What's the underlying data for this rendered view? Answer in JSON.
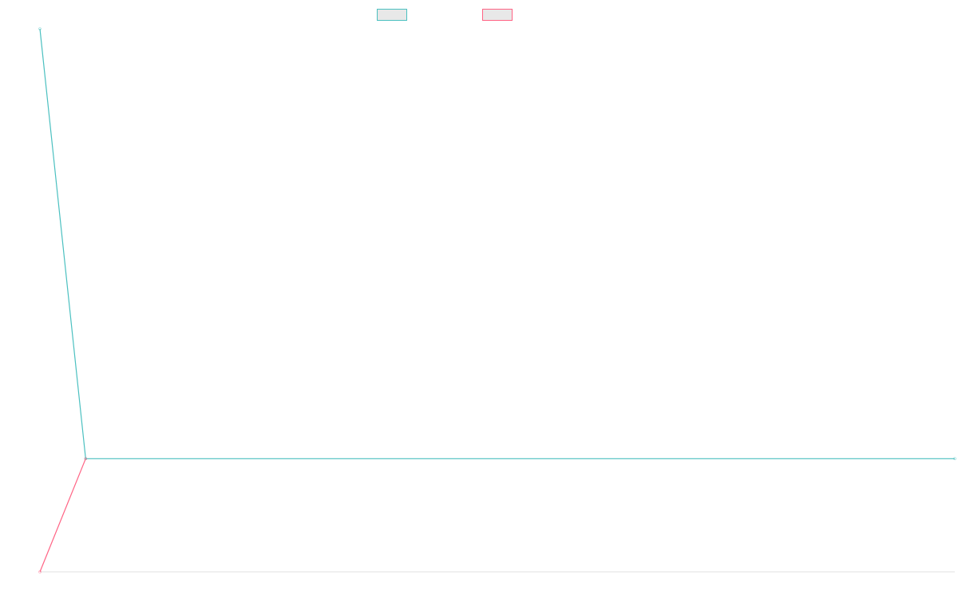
{
  "chart_data": {
    "type": "line",
    "title": "",
    "xlabel": "",
    "ylabel": "",
    "grid": false,
    "legend_position": "top-center",
    "ylim": [
      -1,
      3.8
    ],
    "series": [
      {
        "name": "",
        "color": "#4bc0c0",
        "points": [
          [
            0,
            3.8
          ],
          [
            0.05,
            0
          ],
          [
            1,
            0
          ]
        ]
      },
      {
        "name": "",
        "color": "#ff6384",
        "points": [
          [
            0,
            -1
          ],
          [
            0.05,
            0
          ]
        ]
      }
    ]
  }
}
